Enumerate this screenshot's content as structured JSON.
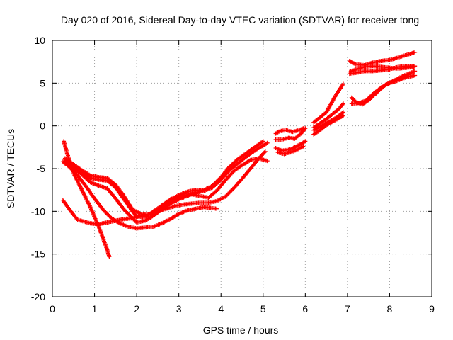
{
  "chart_data": {
    "type": "scatter",
    "title": "Day 020 of 2016, Sidereal Day-to-day VTEC variation (SDTVAR) for receiver tong",
    "xlabel": "GPS time / hours",
    "ylabel": "SDTVAR / TECUs",
    "xlim": [
      0,
      9
    ],
    "ylim": [
      -20,
      10
    ],
    "x_ticks": [
      "0",
      "1",
      "2",
      "3",
      "4",
      "5",
      "6",
      "7",
      "8",
      "9"
    ],
    "y_ticks": [
      "-20",
      "-15",
      "-10",
      "-5",
      "0",
      "5",
      "10"
    ],
    "grid": true,
    "marker": "plus",
    "series_color": "#ff0000",
    "series": [
      {
        "points": [
          [
            0.27,
            -1.8
          ],
          [
            0.35,
            -3.2
          ],
          [
            0.5,
            -5.5
          ],
          [
            0.7,
            -7.5
          ],
          [
            0.9,
            -9.5
          ],
          [
            1.1,
            -11.8
          ],
          [
            1.3,
            -14.5
          ],
          [
            1.35,
            -15.3
          ]
        ]
      },
      {
        "points": [
          [
            0.25,
            -8.7
          ],
          [
            0.35,
            -9.4
          ],
          [
            0.5,
            -10.4
          ],
          [
            0.6,
            -11.0
          ],
          [
            0.75,
            -11.2
          ],
          [
            0.9,
            -11.4
          ],
          [
            1.1,
            -11.5
          ],
          [
            1.3,
            -11.3
          ],
          [
            1.5,
            -11.1
          ],
          [
            1.7,
            -10.9
          ],
          [
            1.9,
            -10.8
          ],
          [
            2.1,
            -10.5
          ],
          [
            2.3,
            -10.4
          ],
          [
            2.5,
            -10.0
          ],
          [
            2.7,
            -9.7
          ],
          [
            2.9,
            -9.4
          ],
          [
            3.1,
            -9.2
          ],
          [
            3.3,
            -9.1
          ],
          [
            3.5,
            -9.0
          ],
          [
            3.7,
            -9.0
          ],
          [
            3.9,
            -8.8
          ],
          [
            4.1,
            -8.3
          ],
          [
            4.3,
            -7.3
          ],
          [
            4.5,
            -6.2
          ],
          [
            4.7,
            -5.0
          ],
          [
            4.9,
            -3.8
          ],
          [
            5.05,
            -3.0
          ]
        ]
      },
      {
        "points": [
          [
            0.3,
            -3.9
          ],
          [
            0.5,
            -4.6
          ],
          [
            0.7,
            -5.4
          ],
          [
            0.9,
            -6.1
          ],
          [
            1.1,
            -6.3
          ],
          [
            1.3,
            -6.4
          ],
          [
            1.5,
            -7.2
          ],
          [
            1.7,
            -8.6
          ],
          [
            1.9,
            -10.0
          ],
          [
            2.0,
            -10.6
          ],
          [
            2.2,
            -10.7
          ],
          [
            2.4,
            -10.0
          ],
          [
            2.6,
            -9.3
          ],
          [
            2.8,
            -8.6
          ],
          [
            3.0,
            -8.1
          ],
          [
            3.2,
            -7.7
          ],
          [
            3.4,
            -7.5
          ],
          [
            3.6,
            -7.5
          ],
          [
            3.8,
            -7.0
          ],
          [
            4.0,
            -6.0
          ],
          [
            4.2,
            -4.8
          ],
          [
            4.4,
            -3.9
          ],
          [
            4.6,
            -3.2
          ],
          [
            4.8,
            -2.5
          ],
          [
            5.0,
            -1.8
          ]
        ]
      },
      {
        "points": [
          [
            0.3,
            -4.1
          ],
          [
            0.5,
            -4.9
          ],
          [
            0.7,
            -5.7
          ],
          [
            0.9,
            -6.6
          ],
          [
            1.1,
            -7.0
          ],
          [
            1.3,
            -7.3
          ],
          [
            1.5,
            -8.5
          ],
          [
            1.7,
            -9.8
          ],
          [
            1.9,
            -10.8
          ],
          [
            2.0,
            -11.3
          ],
          [
            2.2,
            -11.1
          ],
          [
            2.4,
            -10.5
          ],
          [
            2.6,
            -9.8
          ],
          [
            2.8,
            -9.1
          ],
          [
            3.0,
            -8.6
          ],
          [
            3.2,
            -8.2
          ],
          [
            3.4,
            -7.8
          ],
          [
            3.6,
            -7.6
          ],
          [
            3.8,
            -7.2
          ],
          [
            4.0,
            -6.3
          ],
          [
            4.2,
            -5.2
          ],
          [
            4.4,
            -4.4
          ],
          [
            4.6,
            -3.6
          ],
          [
            4.8,
            -2.9
          ],
          [
            5.0,
            -2.3
          ],
          [
            5.1,
            -2.0
          ]
        ]
      },
      {
        "points": [
          [
            0.25,
            -4.2
          ],
          [
            0.4,
            -4.8
          ],
          [
            0.6,
            -5.8
          ],
          [
            0.8,
            -7.1
          ],
          [
            1.0,
            -8.5
          ],
          [
            1.2,
            -9.8
          ],
          [
            1.4,
            -10.8
          ],
          [
            1.6,
            -11.4
          ],
          [
            1.8,
            -11.8
          ],
          [
            2.0,
            -12.0
          ],
          [
            2.2,
            -11.9
          ],
          [
            2.4,
            -11.8
          ],
          [
            2.6,
            -11.4
          ],
          [
            2.8,
            -10.9
          ],
          [
            3.0,
            -10.3
          ],
          [
            3.2,
            -9.9
          ],
          [
            3.4,
            -9.7
          ],
          [
            3.6,
            -9.5
          ],
          [
            3.75,
            -9.6
          ],
          [
            3.9,
            -9.7
          ]
        ]
      },
      {
        "points": [
          [
            0.3,
            -3.8
          ],
          [
            0.5,
            -4.5
          ],
          [
            0.7,
            -5.2
          ],
          [
            0.9,
            -5.8
          ],
          [
            1.1,
            -6.0
          ],
          [
            1.3,
            -6.1
          ],
          [
            1.5,
            -6.9
          ],
          [
            1.7,
            -8.2
          ],
          [
            1.9,
            -9.8
          ],
          [
            2.1,
            -10.3
          ],
          [
            2.3,
            -10.4
          ],
          [
            2.5,
            -10.0
          ],
          [
            2.7,
            -9.2
          ],
          [
            2.9,
            -8.5
          ],
          [
            3.1,
            -8.2
          ],
          [
            3.3,
            -8.0
          ],
          [
            3.5,
            -8.2
          ],
          [
            3.7,
            -8.4
          ],
          [
            3.9,
            -7.6
          ],
          [
            4.1,
            -6.4
          ],
          [
            4.3,
            -5.3
          ],
          [
            4.5,
            -4.6
          ],
          [
            4.7,
            -4.0
          ],
          [
            4.9,
            -3.8
          ],
          [
            5.1,
            -4.1
          ]
        ]
      },
      {
        "points": [
          [
            5.3,
            -0.9
          ],
          [
            5.4,
            -0.6
          ],
          [
            5.55,
            -0.5
          ],
          [
            5.7,
            -0.7
          ],
          [
            5.85,
            -0.5
          ],
          [
            5.95,
            -0.3
          ]
        ]
      },
      {
        "points": [
          [
            5.3,
            -1.6
          ],
          [
            5.45,
            -1.6
          ],
          [
            5.6,
            -1.4
          ],
          [
            5.75,
            -1.5
          ],
          [
            5.9,
            -0.9
          ],
          [
            6.0,
            -0.3
          ]
        ]
      },
      {
        "points": [
          [
            5.3,
            -2.6
          ],
          [
            5.45,
            -2.9
          ],
          [
            5.6,
            -2.8
          ],
          [
            5.75,
            -2.5
          ],
          [
            5.9,
            -2.1
          ],
          [
            6.0,
            -1.8
          ]
        ]
      },
      {
        "points": [
          [
            5.35,
            -3.1
          ],
          [
            5.5,
            -3.3
          ],
          [
            5.65,
            -3.1
          ],
          [
            5.8,
            -2.8
          ],
          [
            5.95,
            -2.4
          ]
        ]
      },
      {
        "points": [
          [
            6.2,
            0.4
          ],
          [
            6.35,
            1.0
          ],
          [
            6.5,
            1.6
          ],
          [
            6.6,
            2.5
          ],
          [
            6.75,
            3.8
          ],
          [
            6.9,
            4.9
          ]
        ]
      },
      {
        "points": [
          [
            6.2,
            -0.2
          ],
          [
            6.35,
            0.3
          ],
          [
            6.5,
            0.8
          ],
          [
            6.65,
            1.4
          ],
          [
            6.8,
            2.0
          ],
          [
            6.9,
            2.6
          ]
        ]
      },
      {
        "points": [
          [
            6.2,
            -0.5
          ],
          [
            6.35,
            -0.1
          ],
          [
            6.5,
            0.3
          ],
          [
            6.65,
            0.7
          ],
          [
            6.8,
            1.2
          ],
          [
            6.9,
            1.6
          ]
        ]
      },
      {
        "points": [
          [
            6.2,
            -1.0
          ],
          [
            6.35,
            -0.5
          ],
          [
            6.5,
            0.1
          ],
          [
            6.65,
            0.5
          ],
          [
            6.8,
            0.9
          ],
          [
            6.9,
            1.2
          ]
        ]
      },
      {
        "points": [
          [
            7.05,
            7.6
          ],
          [
            7.2,
            7.2
          ],
          [
            7.4,
            7.1
          ],
          [
            7.6,
            7.4
          ],
          [
            7.8,
            7.6
          ],
          [
            8.0,
            7.7
          ],
          [
            8.2,
            8.0
          ],
          [
            8.4,
            8.3
          ],
          [
            8.6,
            8.6
          ]
        ]
      },
      {
        "points": [
          [
            7.05,
            6.1
          ],
          [
            7.2,
            6.2
          ],
          [
            7.4,
            6.4
          ],
          [
            7.6,
            6.4
          ],
          [
            7.8,
            6.5
          ],
          [
            8.0,
            6.6
          ],
          [
            8.2,
            6.9
          ],
          [
            8.4,
            7.0
          ],
          [
            8.6,
            7.0
          ]
        ]
      },
      {
        "points": [
          [
            7.05,
            6.3
          ],
          [
            7.2,
            6.6
          ],
          [
            7.4,
            6.9
          ],
          [
            7.6,
            7.0
          ],
          [
            7.8,
            6.9
          ],
          [
            8.0,
            6.8
          ],
          [
            8.2,
            6.7
          ],
          [
            8.4,
            6.8
          ],
          [
            8.6,
            6.9
          ]
        ]
      },
      {
        "points": [
          [
            7.1,
            3.3
          ],
          [
            7.2,
            2.8
          ],
          [
            7.35,
            2.5
          ],
          [
            7.5,
            3.0
          ],
          [
            7.7,
            3.9
          ],
          [
            7.9,
            4.8
          ],
          [
            8.1,
            5.3
          ],
          [
            8.3,
            5.8
          ],
          [
            8.5,
            6.2
          ],
          [
            8.6,
            6.4
          ]
        ]
      },
      {
        "points": [
          [
            7.1,
            2.6
          ],
          [
            7.3,
            2.7
          ],
          [
            7.45,
            3.0
          ],
          [
            7.6,
            3.7
          ],
          [
            7.8,
            4.5
          ],
          [
            8.0,
            5.0
          ],
          [
            8.2,
            5.3
          ],
          [
            8.4,
            5.7
          ],
          [
            8.6,
            5.9
          ]
        ]
      }
    ]
  }
}
